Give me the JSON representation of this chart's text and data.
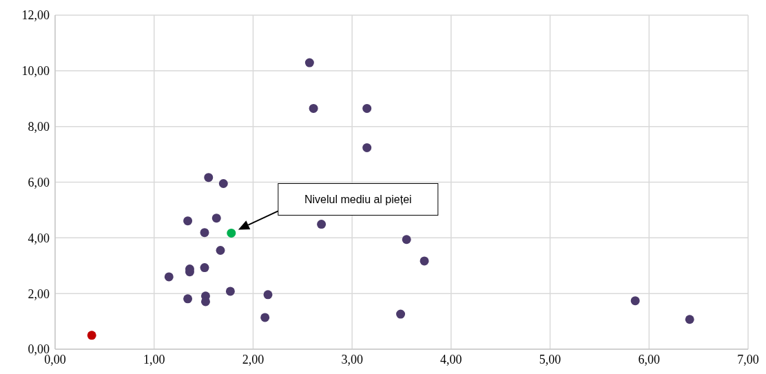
{
  "chart_data": {
    "type": "scatter",
    "marker": "circle",
    "grid": true,
    "legend": false,
    "xlim": [
      0,
      7
    ],
    "ylim": [
      0,
      12
    ],
    "xticks": [
      {
        "value": 0,
        "label": "0,00"
      },
      {
        "value": 1,
        "label": "1,00"
      },
      {
        "value": 2,
        "label": "2,00"
      },
      {
        "value": 3,
        "label": "3,00"
      },
      {
        "value": 4,
        "label": "4,00"
      },
      {
        "value": 5,
        "label": "5,00"
      },
      {
        "value": 6,
        "label": "6,00"
      },
      {
        "value": 7,
        "label": "7,00"
      }
    ],
    "yticks": [
      {
        "value": 0,
        "label": "0,00"
      },
      {
        "value": 2,
        "label": "2,00"
      },
      {
        "value": 4,
        "label": "4,00"
      },
      {
        "value": 6,
        "label": "6,00"
      },
      {
        "value": 8,
        "label": "8,00"
      },
      {
        "value": 10,
        "label": "10,00"
      },
      {
        "value": 12,
        "label": "12,00"
      }
    ],
    "series": [
      {
        "color": "#4b3a6b",
        "x": [
          2.57,
          2.61,
          3.15,
          3.15,
          1.55,
          1.7,
          1.34,
          1.63,
          1.51,
          2.69,
          3.55,
          3.73,
          1.67,
          1.15,
          1.36,
          1.36,
          1.51,
          1.34,
          1.52,
          1.52,
          1.77,
          2.15,
          2.12,
          3.49,
          5.86,
          6.41
        ],
        "values": [
          10.29,
          8.65,
          8.65,
          7.24,
          6.17,
          5.95,
          4.61,
          4.71,
          4.19,
          4.49,
          3.94,
          3.17,
          3.55,
          2.6,
          2.88,
          2.78,
          2.93,
          1.81,
          1.91,
          1.71,
          2.08,
          1.96,
          1.14,
          1.26,
          1.74,
          1.07
        ]
      },
      {
        "color": "#00b050",
        "x": [
          1.78
        ],
        "values": [
          4.17
        ]
      },
      {
        "color": "#c00000",
        "x": [
          0.37
        ],
        "values": [
          0.5
        ]
      }
    ],
    "annotations": [
      "Nivelul mediu al pieței"
    ]
  }
}
